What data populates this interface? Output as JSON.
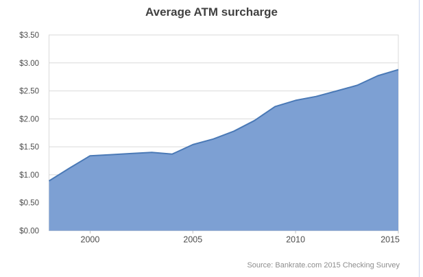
{
  "title": "Average ATM surcharge",
  "source": "Source: Bankrate.com 2015 Checking Survey",
  "colors": {
    "area_fill": "#7da0d3",
    "area_line": "#4a79b6",
    "grid": "#d9d9d9",
    "plot_border": "#d9d9d9",
    "tick_mark": "#c0c0c0",
    "title_text": "#404040",
    "axis_text": "#4d4d4d",
    "source_text": "#8c8c8c",
    "page_edge_line": "#c9d4ee"
  },
  "chart_data": {
    "type": "area",
    "title": "Average ATM surcharge",
    "xlabel": "",
    "ylabel": "",
    "x": [
      1998,
      1999,
      2000,
      2001,
      2002,
      2003,
      2004,
      2005,
      2006,
      2007,
      2008,
      2009,
      2010,
      2011,
      2012,
      2013,
      2014,
      2015
    ],
    "values": [
      0.89,
      1.12,
      1.34,
      1.36,
      1.38,
      1.4,
      1.37,
      1.54,
      1.64,
      1.78,
      1.97,
      2.22,
      2.33,
      2.4,
      2.5,
      2.6,
      2.77,
      2.88
    ],
    "series_name": "Average ATM surcharge ($)",
    "ylim": [
      0,
      3.5
    ],
    "y_tick_step": 0.5,
    "y_tick_labels": [
      "$0.00",
      "$0.50",
      "$1.00",
      "$1.50",
      "$2.00",
      "$2.50",
      "$3.00",
      "$3.50"
    ],
    "x_tick_years": [
      2000,
      2005,
      2010,
      2015
    ],
    "x_tick_labels": [
      "2000",
      "2005",
      "2010",
      "2015"
    ],
    "grid": "horizontal",
    "legend": "none"
  }
}
